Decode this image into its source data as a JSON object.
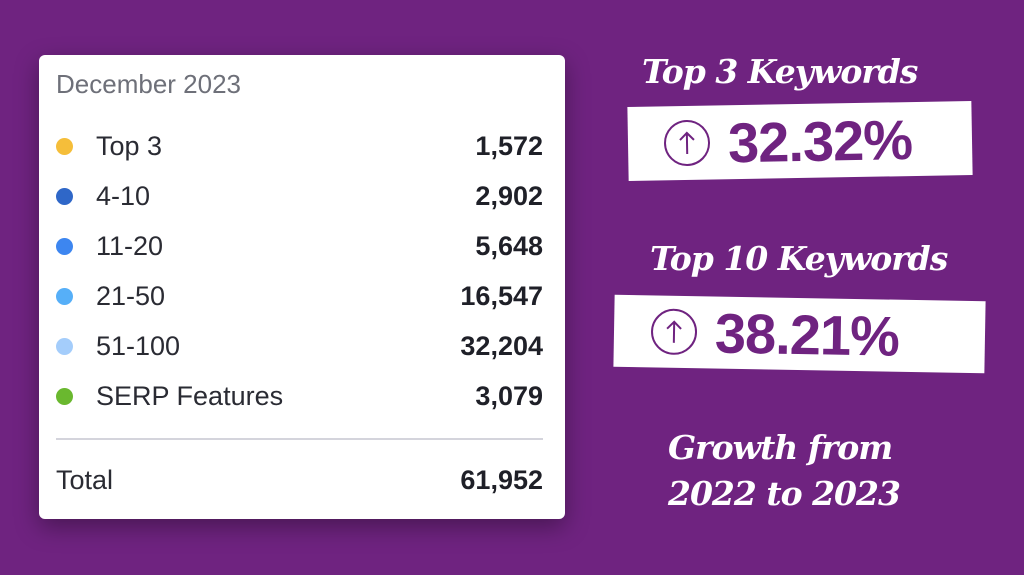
{
  "card": {
    "title": "December 2023",
    "rows": [
      {
        "label": "Top 3",
        "value": "1,572",
        "color": "#f5be3a"
      },
      {
        "label": "4-10",
        "value": "2,902",
        "color": "#2f67c8"
      },
      {
        "label": "11-20",
        "value": "5,648",
        "color": "#3d86f0"
      },
      {
        "label": "21-50",
        "value": "16,547",
        "color": "#56aff8"
      },
      {
        "label": "51-100",
        "value": "32,204",
        "color": "#a4cdfb"
      },
      {
        "label": "SERP Features",
        "value": "3,079",
        "color": "#6ab82f"
      }
    ],
    "total": {
      "label": "Total",
      "value": "61,952"
    }
  },
  "stats": [
    {
      "heading": "Top 3 Keywords",
      "value": "32.32%",
      "icon": "arrow-up-circle-icon"
    },
    {
      "heading": "Top 10 Keywords",
      "value": "38.21%",
      "icon": "arrow-up-circle-icon"
    }
  ],
  "footer": {
    "line1": "Growth from",
    "line2": "2022 to 2023"
  },
  "colors": {
    "background": "#6f2380",
    "accent": "#6f2380"
  }
}
